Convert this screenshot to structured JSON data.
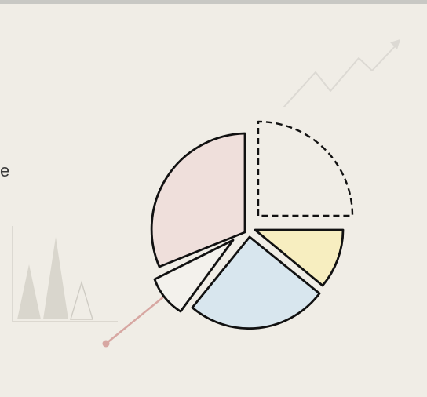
{
  "left_fragment_text": "e",
  "colors": {
    "background": "#f0ede6",
    "top_strip": "#c8c8c4",
    "outline": "#111111",
    "pink_slice": "#efdfdb",
    "yellow_slice": "#f7eec0",
    "blue_slice": "#d8e6ee",
    "dashed_slice": "#f0ede6",
    "small_slice": "#f3f1ec",
    "pointer_line": "#d7a7a2",
    "trend_line": "#dcd9d3",
    "mini_chart": "#d9d6cd",
    "mini_chart_outline": "#cfccc4"
  },
  "icons": {
    "trend": "upward-trend-arrow-icon",
    "mini_chart": "triangle-bar-chart-icon"
  }
}
